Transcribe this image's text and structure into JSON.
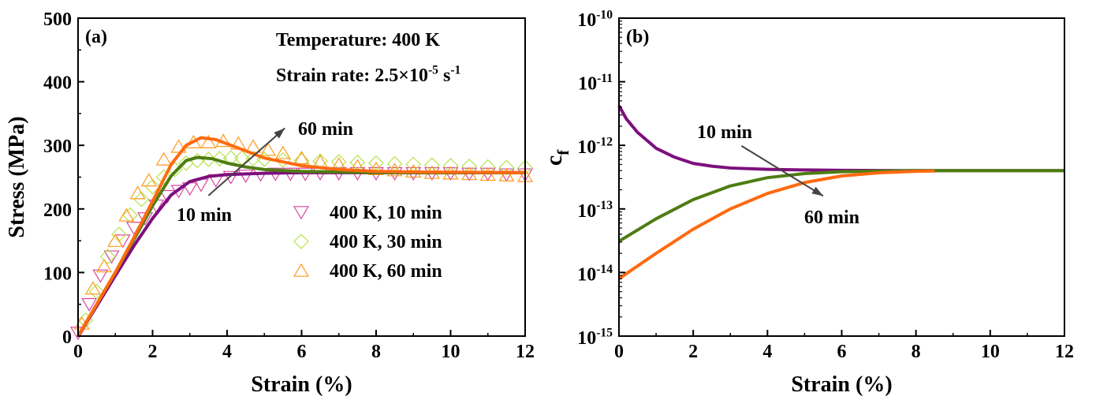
{
  "chart_data": [
    {
      "type": "line",
      "panel_label": "(a)",
      "xlabel": "Strain (%)",
      "ylabel": "Stress (MPa)",
      "xlim": [
        0,
        12
      ],
      "ylim": [
        0,
        500
      ],
      "xticks": [
        0,
        2,
        4,
        6,
        8,
        10,
        12
      ],
      "yticks": [
        0,
        100,
        200,
        300,
        400,
        500
      ],
      "grid": false,
      "annotations": {
        "temperature": "Temperature: 400 K",
        "strain_rate_prefix": "Strain rate: 2.5×10",
        "strain_rate_exp": "-5",
        "strain_rate_unit": " s",
        "strain_rate_unit_exp": "-1",
        "label_60": "60 min",
        "label_10": "10 min",
        "arrow": {
          "from": [
            3.5,
            221
          ],
          "to": [
            5.55,
            327
          ]
        }
      },
      "legend_placement": "center-right",
      "series": [
        {
          "name": "400 K, 10 min",
          "marker": "triangle-down",
          "marker_color": "#d9479e",
          "line_color": "#7d0f7d",
          "marker_x": [
            0,
            0.3,
            0.6,
            0.9,
            1.2,
            1.5,
            1.8,
            2.1,
            2.4,
            2.7,
            3.0,
            3.3,
            3.7,
            4.1,
            4.5,
            4.9,
            5.3,
            5.7,
            6.1,
            6.5,
            7.0,
            7.5,
            8.0,
            8.5,
            9.0,
            9.5,
            10.0,
            10.5,
            11.0,
            11.5,
            12.0
          ],
          "marker_y": [
            5,
            50,
            95,
            125,
            150,
            170,
            185,
            205,
            220,
            228,
            232,
            238,
            245,
            250,
            252,
            254,
            255,
            255,
            255,
            256,
            256,
            256,
            256,
            256,
            256,
            256,
            256,
            255,
            255,
            254,
            254
          ],
          "fit_x": [
            0,
            0.5,
            1,
            1.5,
            2,
            2.5,
            3,
            3.5,
            4,
            5,
            6,
            12
          ],
          "fit_y": [
            0,
            47,
            95,
            142,
            185,
            222,
            243,
            251,
            254,
            256,
            257,
            257
          ]
        },
        {
          "name": "400 K, 30 min",
          "marker": "diamond",
          "marker_color": "#b5e34a",
          "line_color": "#4e7d12",
          "marker_x": [
            0.2,
            0.5,
            0.8,
            1.1,
            1.4,
            1.7,
            2.0,
            2.3,
            2.6,
            2.9,
            3.2,
            3.5,
            3.8,
            4.1,
            4.4,
            4.7,
            5.0,
            5.5,
            6.0,
            6.5,
            7.0,
            7.5,
            8.0,
            8.5,
            9.0,
            9.5,
            10.0,
            10.5,
            11.0,
            11.5,
            12.0
          ],
          "marker_y": [
            25,
            70,
            125,
            160,
            190,
            215,
            235,
            250,
            262,
            272,
            276,
            278,
            279,
            280,
            280,
            279,
            278,
            277,
            276,
            275,
            274,
            273,
            272,
            271,
            270,
            269,
            268,
            267,
            266,
            265,
            265
          ],
          "fit_x": [
            0,
            0.5,
            1,
            1.5,
            2,
            2.5,
            2.9,
            3.2,
            3.6,
            4,
            4.5,
            5,
            6,
            7,
            8,
            12
          ],
          "fit_y": [
            0,
            50,
            100,
            152,
            205,
            252,
            276,
            281,
            279,
            272,
            266,
            262,
            259,
            258,
            257,
            257
          ]
        },
        {
          "name": "400 K, 60 min",
          "marker": "triangle-up",
          "marker_color": "#ff9a1a",
          "line_color": "#ff6a10",
          "marker_x": [
            0.1,
            0.4,
            0.7,
            1.0,
            1.3,
            1.6,
            1.9,
            2.3,
            2.7,
            3.1,
            3.5,
            3.9,
            4.3,
            4.7,
            5.1,
            5.5,
            6.0,
            6.5,
            7.0,
            7.5,
            8.0,
            8.5,
            9.0,
            9.5,
            10,
            10.5,
            11,
            11.5,
            12
          ],
          "marker_y": [
            20,
            75,
            110,
            150,
            190,
            225,
            245,
            278,
            298,
            305,
            305,
            307,
            303,
            298,
            293,
            288,
            280,
            274,
            270,
            267,
            263,
            261,
            259,
            257,
            256,
            255,
            254,
            253,
            252
          ],
          "fit_x": [
            0,
            0.5,
            1,
            1.5,
            2,
            2.5,
            2.9,
            3.3,
            3.7,
            4.2,
            5,
            6,
            7,
            8,
            9,
            12
          ],
          "fit_y": [
            0,
            50,
            100,
            155,
            212,
            270,
            300,
            312,
            309,
            298,
            280,
            268,
            262,
            259,
            258,
            257
          ]
        }
      ]
    },
    {
      "type": "line",
      "panel_label": "(b)",
      "xlabel": "Strain (%)",
      "ylabel": "c",
      "ylabel_sub": "f",
      "xlim": [
        0,
        12
      ],
      "ylim": [
        1e-15,
        1e-10
      ],
      "yscale": "log",
      "xticks": [
        0,
        2,
        4,
        6,
        8,
        10,
        12
      ],
      "yticks_exp": [
        "-15",
        "-14",
        "-13",
        "-12",
        "-11",
        "-10"
      ],
      "ytick_base": "10",
      "grid": false,
      "annotations": {
        "label_10": "10 min",
        "label_60": "60 min",
        "arrow": {
          "from": [
            3.3,
            9.8e-13
          ],
          "to": [
            5.5,
            1.6e-13
          ]
        }
      },
      "series": [
        {
          "line_color": "#7d0f7d",
          "x": [
            0,
            0.2,
            0.5,
            1,
            1.5,
            2,
            2.5,
            3,
            4,
            5,
            6,
            8,
            12
          ],
          "y": [
            4.2e-12,
            2.6e-12,
            1.6e-12,
            9e-13,
            6.5e-13,
            5.2e-13,
            4.7e-13,
            4.4e-13,
            4.2e-13,
            4.1e-13,
            4.05e-13,
            4e-13,
            4e-13
          ]
        },
        {
          "line_color": "#4e7d12",
          "x": [
            0,
            1,
            2,
            3,
            4,
            5,
            6,
            7,
            8,
            12
          ],
          "y": [
            3.1e-14,
            7e-14,
            1.4e-13,
            2.3e-13,
            3.1e-13,
            3.6e-13,
            3.85e-13,
            3.95e-13,
            4e-13,
            4e-13
          ]
        },
        {
          "line_color": "#ff6a10",
          "x": [
            0,
            1,
            2,
            3,
            4,
            5,
            6,
            7,
            8,
            8.5
          ],
          "y": [
            8e-15,
            2e-14,
            4.8e-14,
            1e-13,
            1.75e-13,
            2.6e-13,
            3.3e-13,
            3.7e-13,
            3.9e-13,
            3.95e-13
          ]
        }
      ]
    }
  ]
}
